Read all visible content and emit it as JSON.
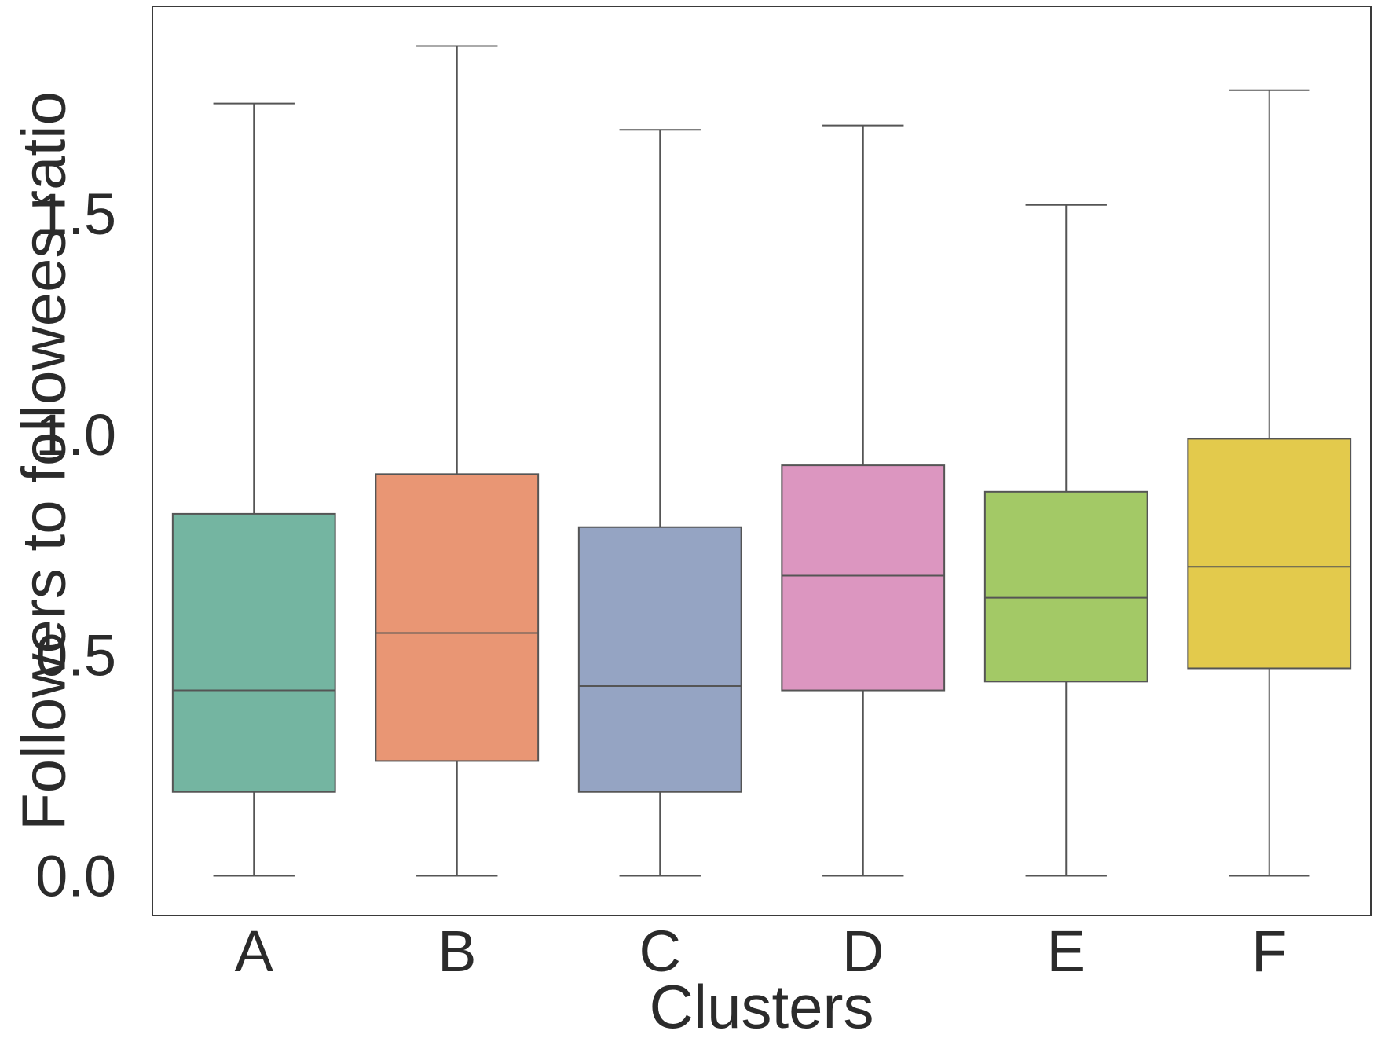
{
  "chart_data": {
    "type": "boxplot",
    "title": "",
    "xlabel": "Clusters",
    "ylabel": "Followers to followees ratio",
    "ylim": [
      -0.09,
      1.97
    ],
    "yticks": [
      0.0,
      0.5,
      1.0,
      1.5
    ],
    "ytick_labels": [
      "0.0",
      "0.5",
      "1.0",
      "1.5"
    ],
    "grid": false,
    "legend": "none",
    "series": [
      {
        "name": "A",
        "color": "#74b5a1",
        "whisker_low": 0.0,
        "q1": 0.19,
        "median": 0.42,
        "q3": 0.82,
        "whisker_high": 1.75
      },
      {
        "name": "B",
        "color": "#e99674",
        "whisker_low": 0.0,
        "q1": 0.26,
        "median": 0.55,
        "q3": 0.91,
        "whisker_high": 1.88
      },
      {
        "name": "C",
        "color": "#95a4c3",
        "whisker_low": 0.0,
        "q1": 0.19,
        "median": 0.43,
        "q3": 0.79,
        "whisker_high": 1.69
      },
      {
        "name": "D",
        "color": "#dc96c0",
        "whisker_low": 0.0,
        "q1": 0.42,
        "median": 0.68,
        "q3": 0.93,
        "whisker_high": 1.7
      },
      {
        "name": "E",
        "color": "#a3c966",
        "whisker_low": 0.0,
        "q1": 0.44,
        "median": 0.63,
        "q3": 0.87,
        "whisker_high": 1.52
      },
      {
        "name": "F",
        "color": "#e3ca4c",
        "whisker_low": 0.0,
        "q1": 0.47,
        "median": 0.7,
        "q3": 0.99,
        "whisker_high": 1.78
      }
    ],
    "line_color": "#555555",
    "frame_color": "#3a3a3a"
  }
}
